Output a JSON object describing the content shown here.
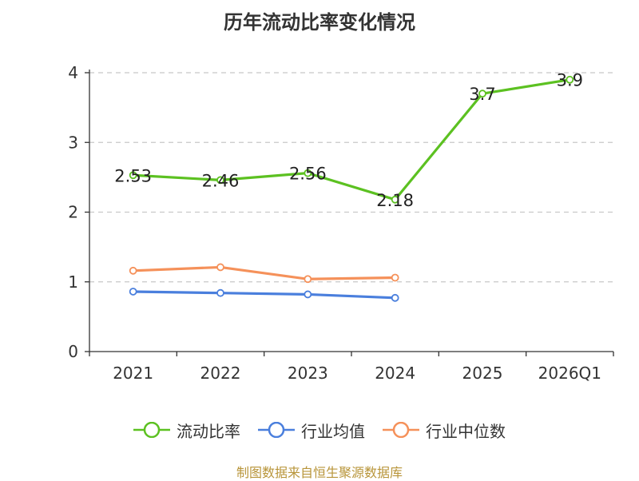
{
  "chart_data": {
    "type": "line",
    "title": "历年流动比率变化情况",
    "categories": [
      "2021",
      "2022",
      "2023",
      "2024",
      "2025",
      "2026Q1"
    ],
    "ylim": [
      0,
      4
    ],
    "yticks": [
      "0",
      "1",
      "2",
      "3",
      "4"
    ],
    "grid": true,
    "legend_position": "bottom",
    "series": [
      {
        "name": "流动比率",
        "color": "#5cc121",
        "values": [
          2.53,
          2.46,
          2.56,
          2.18,
          3.7,
          3.9
        ],
        "labels": [
          "2.53",
          "2.46",
          "2.56",
          "2.18",
          "3.7",
          "3.9"
        ]
      },
      {
        "name": "行业均值",
        "color": "#4a7fdd",
        "values": [
          0.86,
          0.84,
          0.82,
          0.77,
          null,
          null
        ]
      },
      {
        "name": "行业中位数",
        "color": "#f5915a",
        "values": [
          1.16,
          1.21,
          1.04,
          1.06,
          null,
          null
        ]
      }
    ]
  },
  "source": "制图数据来自恒生聚源数据库"
}
